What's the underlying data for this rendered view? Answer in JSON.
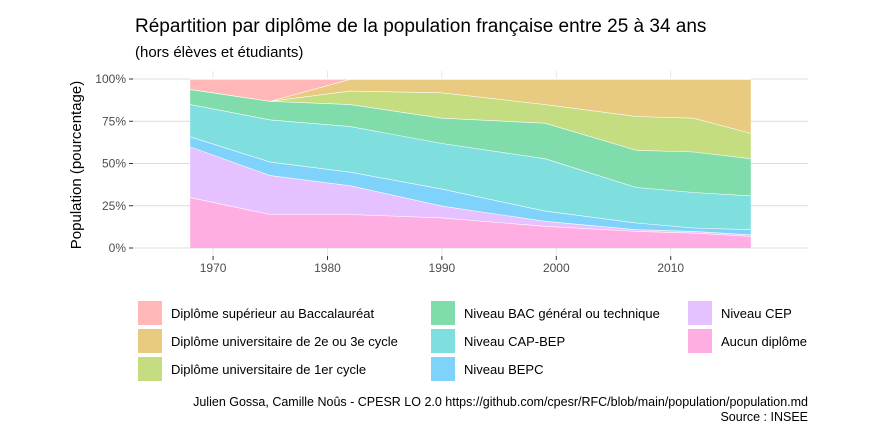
{
  "chart_data": {
    "type": "area",
    "stacked": true,
    "title": "Répartition par diplôme de la population française entre 25 à 34 ans",
    "subtitle": "(hors élèves et étudiants)",
    "xlabel": "",
    "ylabel": "Population (pourcentage)",
    "x": [
      1968,
      1975,
      1982,
      1990,
      1999,
      2007,
      2012,
      2017
    ],
    "xlim": [
      1963,
      2022
    ],
    "ylim": [
      0,
      100
    ],
    "x_ticks": [
      "1970",
      "1980",
      "1990",
      "2000",
      "2010"
    ],
    "x_tick_values": [
      1970,
      1980,
      1990,
      2000,
      2010
    ],
    "y_ticks": [
      "0%",
      "25%",
      "50%",
      "75%",
      "100%"
    ],
    "y_tick_values": [
      0,
      25,
      50,
      75,
      100
    ],
    "grid": true,
    "legend_position": "bottom",
    "series": [
      {
        "name": "Aucun diplôme",
        "color": "#ffaee3",
        "values": [
          30,
          20,
          20,
          18,
          13,
          10,
          9,
          7
        ]
      },
      {
        "name": "Niveau CEP",
        "color": "#e6c1ff",
        "values": [
          30,
          23,
          17,
          7,
          3,
          1,
          1,
          1
        ]
      },
      {
        "name": "Niveau BEPC",
        "color": "#7fd3fa",
        "values": [
          6,
          8,
          8,
          10,
          6,
          4,
          2,
          3
        ]
      },
      {
        "name": "Niveau CAP-BEP",
        "color": "#7fdede",
        "values": [
          19,
          25,
          27,
          27,
          31,
          21,
          21,
          20
        ]
      },
      {
        "name": "Niveau BAC général ou technique",
        "color": "#80dcaa",
        "values": [
          9,
          11,
          13,
          15,
          21,
          22,
          24,
          22
        ]
      },
      {
        "name": "Diplôme universitaire de 1er cycle",
        "color": "#c3dd80",
        "values": [
          0,
          0,
          8,
          15,
          11,
          20,
          20,
          15
        ]
      },
      {
        "name": "Diplôme universitaire de 2e ou 3e cycle",
        "color": "#e8cb80",
        "values": [
          0,
          0,
          7,
          8,
          15,
          22,
          23,
          32
        ]
      },
      {
        "name": "Diplôme supérieur au Baccalauréat",
        "color": "#ffb7b7",
        "values": [
          6,
          13,
          0,
          0,
          0,
          0,
          0,
          0
        ]
      }
    ],
    "legend_order": [
      "Diplôme supérieur au Baccalauréat",
      "Diplôme universitaire de 2e ou 3e cycle",
      "Diplôme universitaire de 1er cycle",
      "Niveau BAC général ou technique",
      "Niveau CAP-BEP",
      "Niveau BEPC",
      "Niveau CEP",
      "Aucun diplôme"
    ]
  },
  "caption": {
    "line1": "Julien Gossa, Camille Noûs - CPESR LO 2.0 https://github.com/cpesr/RFC/blob/main/population/population.md",
    "line2": "Source : INSEE"
  }
}
